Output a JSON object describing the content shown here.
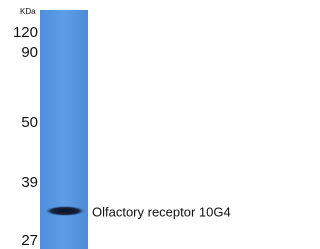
{
  "blot": {
    "unit_label": "KDa",
    "markers": [
      "120",
      "90",
      "50",
      "39",
      "27"
    ],
    "band_label": "Olfactory receptor 10G4"
  }
}
